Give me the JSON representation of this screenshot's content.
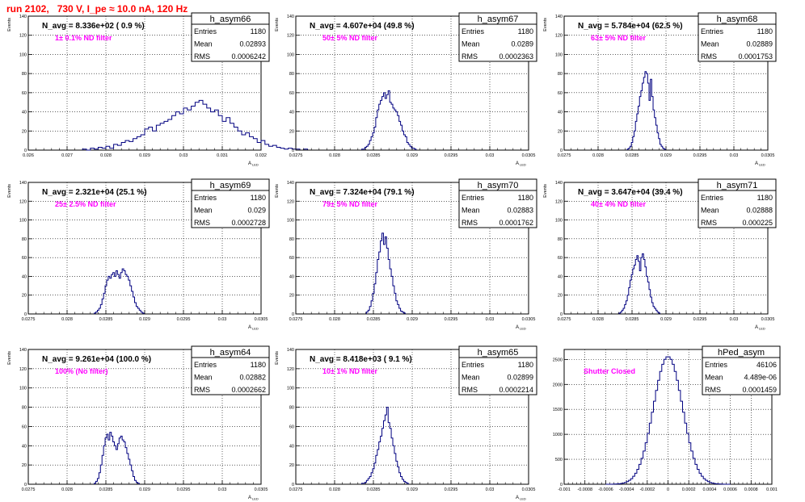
{
  "header": {
    "run_title": "run 2102,   730 V, I_pe ≈ 10.0 nA, 120 Hz"
  },
  "colors": {
    "title": "#ff0000",
    "histogram": "#000080",
    "filter_label": "#ff00ff",
    "grid": "#000000"
  },
  "stats_labels": {
    "entries": "Entries",
    "mean": "Mean",
    "rms": "RMS"
  },
  "chart_data": [
    {
      "type": "histogram",
      "name": "h_asym66",
      "title": "N_avg = 8.336e+02 ( 0.9 %)",
      "filter_label": "1± 0.1% ND filter",
      "ylabel": "Events",
      "xlabel": "A_LED",
      "xlim": [
        0.026,
        0.032
      ],
      "ylim": [
        0,
        140
      ],
      "xticks": [
        0.026,
        0.027,
        0.028,
        0.029,
        0.03,
        0.031,
        0.032
      ],
      "xtick_labels": [
        "0.026",
        "0.027",
        "0.028",
        "0.029",
        "0.03",
        "0.031",
        "0.032"
      ],
      "yticks": [
        0,
        20,
        40,
        60,
        80,
        100,
        120,
        140
      ],
      "ytick_labels": [
        "0",
        "20",
        "40",
        "60",
        "80",
        "100",
        "120",
        "140"
      ],
      "stats": {
        "entries": "1180",
        "mean": "0.02893",
        "rms": "0.0006242"
      },
      "bin_start": 0.0274,
      "bin_width": 0.0001,
      "counts": [
        1,
        0,
        2,
        1,
        3,
        2,
        4,
        2,
        6,
        5,
        8,
        10,
        9,
        12,
        14,
        16,
        22,
        24,
        20,
        26,
        28,
        30,
        32,
        36,
        40,
        38,
        44,
        42,
        46,
        50,
        52,
        48,
        44,
        40,
        42,
        36,
        30,
        34,
        28,
        24,
        20,
        16,
        18,
        14,
        12,
        8,
        10,
        6,
        4,
        5,
        3,
        2,
        1,
        2,
        1,
        1,
        0,
        1
      ]
    },
    {
      "type": "histogram",
      "name": "h_asym67",
      "title": "N_avg = 4.607e+04 (49.8 %)",
      "filter_label": "50± 5% ND filter",
      "ylabel": "Events",
      "xlabel": "A_LED",
      "xlim": [
        0.0275,
        0.0305
      ],
      "ylim": [
        0,
        140
      ],
      "xticks": [
        0.0275,
        0.028,
        0.0285,
        0.029,
        0.0295,
        0.03,
        0.0305
      ],
      "xtick_labels": [
        "0.0275",
        "0.028",
        "0.0285",
        "0.029",
        "0.0295",
        "0.03",
        "0.0305"
      ],
      "yticks": [
        0,
        20,
        40,
        60,
        80,
        100,
        120,
        140
      ],
      "ytick_labels": [
        "0",
        "20",
        "40",
        "60",
        "80",
        "100",
        "120",
        "140"
      ],
      "stats": {
        "entries": "1180",
        "mean": "0.0289",
        "rms": "0.0002363"
      },
      "bin_start": 0.02835,
      "bin_width": 2e-05,
      "counts": [
        1,
        1,
        3,
        4,
        6,
        10,
        14,
        18,
        24,
        34,
        42,
        48,
        52,
        56,
        60,
        54,
        58,
        62,
        50,
        48,
        44,
        42,
        40,
        36,
        30,
        26,
        20,
        16,
        14,
        8,
        6,
        4,
        2,
        2,
        1
      ]
    },
    {
      "type": "histogram",
      "name": "h_asym68",
      "title": "N_avg = 5.784e+04 (62.5 %)",
      "filter_label": "63± 5% ND filter",
      "ylabel": "Events",
      "xlabel": "A_LED",
      "xlim": [
        0.0275,
        0.0305
      ],
      "ylim": [
        0,
        140
      ],
      "xticks": [
        0.0275,
        0.028,
        0.0285,
        0.029,
        0.0295,
        0.03,
        0.0305
      ],
      "xtick_labels": [
        "0.0275",
        "0.028",
        "0.0285",
        "0.029",
        "0.0295",
        "0.03",
        "0.0305"
      ],
      "yticks": [
        0,
        20,
        40,
        60,
        80,
        100,
        120,
        140
      ],
      "ytick_labels": [
        "0",
        "20",
        "40",
        "60",
        "80",
        "100",
        "120",
        "140"
      ],
      "stats": {
        "entries": "1180",
        "mean": "0.02889",
        "rms": "0.0001753"
      },
      "bin_start": 0.02843,
      "bin_width": 2e-05,
      "counts": [
        1,
        2,
        4,
        8,
        14,
        20,
        30,
        38,
        46,
        56,
        62,
        70,
        76,
        82,
        80,
        70,
        52,
        74,
        56,
        42,
        34,
        26,
        18,
        12,
        6,
        4,
        2,
        1
      ]
    },
    {
      "type": "histogram",
      "name": "h_asym69",
      "title": "N_avg = 2.321e+04 (25.1 %)",
      "filter_label": "25± 2.5% ND filter",
      "ylabel": "Events",
      "xlabel": "A_LED",
      "xlim": [
        0.0275,
        0.0305
      ],
      "ylim": [
        0,
        140
      ],
      "xticks": [
        0.0275,
        0.028,
        0.0285,
        0.029,
        0.0295,
        0.03,
        0.0305
      ],
      "xtick_labels": [
        "0.0275",
        "0.028",
        "0.0285",
        "0.029",
        "0.0295",
        "0.03",
        "0.0305"
      ],
      "yticks": [
        0,
        20,
        40,
        60,
        80,
        100,
        120,
        140
      ],
      "ytick_labels": [
        "0",
        "20",
        "40",
        "60",
        "80",
        "100",
        "120",
        "140"
      ],
      "stats": {
        "entries": "1180",
        "mean": "0.029",
        "rms": "0.0002728"
      },
      "bin_start": 0.02835,
      "bin_width": 2e-05,
      "counts": [
        1,
        2,
        4,
        6,
        10,
        16,
        22,
        30,
        36,
        40,
        38,
        42,
        44,
        40,
        46,
        42,
        38,
        44,
        48,
        46,
        42,
        40,
        36,
        30,
        24,
        18,
        12,
        8,
        6,
        4,
        2,
        1
      ]
    },
    {
      "type": "histogram",
      "name": "h_asym70",
      "title": "N_avg = 7.324e+04 (79.1 %)",
      "filter_label": "79± 5% ND filter",
      "ylabel": "Events",
      "xlabel": "A_LED",
      "xlim": [
        0.0275,
        0.0305
      ],
      "ylim": [
        0,
        140
      ],
      "xticks": [
        0.0275,
        0.028,
        0.0285,
        0.029,
        0.0295,
        0.03,
        0.0305
      ],
      "xtick_labels": [
        "0.0275",
        "0.028",
        "0.0285",
        "0.029",
        "0.0295",
        "0.03",
        "0.0305"
      ],
      "yticks": [
        0,
        20,
        40,
        60,
        80,
        100,
        120,
        140
      ],
      "ytick_labels": [
        "0",
        "20",
        "40",
        "60",
        "80",
        "100",
        "120",
        "140"
      ],
      "stats": {
        "entries": "1180",
        "mean": "0.02883",
        "rms": "0.0001762"
      },
      "bin_start": 0.02841,
      "bin_width": 2e-05,
      "counts": [
        2,
        4,
        8,
        14,
        22,
        32,
        44,
        58,
        66,
        78,
        86,
        74,
        82,
        70,
        58,
        48,
        40,
        30,
        22,
        14,
        10,
        6,
        3,
        2,
        1
      ]
    },
    {
      "type": "histogram",
      "name": "h_asym71",
      "title": "N_avg = 3.647e+04 (39.4 %)",
      "filter_label": "40± 4% ND filter",
      "ylabel": "Events",
      "xlabel": "A_LED",
      "xlim": [
        0.0275,
        0.0305
      ],
      "ylim": [
        0,
        140
      ],
      "xticks": [
        0.0275,
        0.028,
        0.0285,
        0.029,
        0.0295,
        0.03,
        0.0305
      ],
      "xtick_labels": [
        "0.0275",
        "0.028",
        "0.0285",
        "0.029",
        "0.0295",
        "0.03",
        "0.0305"
      ],
      "yticks": [
        0,
        20,
        40,
        60,
        80,
        100,
        120,
        140
      ],
      "ytick_labels": [
        "0",
        "20",
        "40",
        "60",
        "80",
        "100",
        "120",
        "140"
      ],
      "stats": {
        "entries": "1180",
        "mean": "0.02888",
        "rms": "0.000225"
      },
      "bin_start": 0.02831,
      "bin_width": 2e-05,
      "counts": [
        1,
        2,
        4,
        6,
        10,
        14,
        20,
        28,
        36,
        42,
        48,
        52,
        58,
        62,
        56,
        46,
        60,
        64,
        58,
        50,
        40,
        34,
        26,
        18,
        12,
        8,
        6,
        4,
        2,
        1
      ]
    },
    {
      "type": "histogram",
      "name": "h_asym64",
      "title": "N_avg = 9.261e+04 (100.0 %)",
      "filter_label": "100% (No filter)",
      "ylabel": "Events",
      "xlabel": "A_LED",
      "xlim": [
        0.0275,
        0.0305
      ],
      "ylim": [
        0,
        140
      ],
      "xticks": [
        0.0275,
        0.028,
        0.0285,
        0.029,
        0.0295,
        0.03,
        0.0305
      ],
      "xtick_labels": [
        "0.0275",
        "0.028",
        "0.0285",
        "0.029",
        "0.0295",
        "0.03",
        "0.0305"
      ],
      "yticks": [
        0,
        20,
        40,
        60,
        80,
        100,
        120,
        140
      ],
      "ytick_labels": [
        "0",
        "20",
        "40",
        "60",
        "80",
        "100",
        "120",
        "140"
      ],
      "stats": {
        "entries": "1180",
        "mean": "0.02882",
        "rms": "0.0002662"
      },
      "bin_start": 0.02835,
      "bin_width": 2e-05,
      "counts": [
        1,
        3,
        6,
        12,
        20,
        30,
        40,
        48,
        52,
        46,
        54,
        50,
        44,
        40,
        36,
        42,
        48,
        50,
        46,
        44,
        38,
        32,
        26,
        20,
        14,
        8,
        4,
        2,
        1
      ]
    },
    {
      "type": "histogram",
      "name": "h_asym65",
      "title": "N_avg = 8.418e+03 ( 9.1 %)",
      "filter_label": "10± 1% ND filter",
      "ylabel": "Events",
      "xlabel": "A_LED",
      "xlim": [
        0.0275,
        0.0305
      ],
      "ylim": [
        0,
        140
      ],
      "xticks": [
        0.0275,
        0.028,
        0.0285,
        0.029,
        0.0295,
        0.03,
        0.0305
      ],
      "xtick_labels": [
        "0.0275",
        "0.028",
        "0.0285",
        "0.029",
        "0.0295",
        "0.03",
        "0.0305"
      ],
      "yticks": [
        0,
        20,
        40,
        60,
        80,
        100,
        120,
        140
      ],
      "ytick_labels": [
        "0",
        "20",
        "40",
        "60",
        "80",
        "100",
        "120",
        "140"
      ],
      "stats": {
        "entries": "1180",
        "mean": "0.02899",
        "rms": "0.0002214"
      },
      "bin_start": 0.02835,
      "bin_width": 2e-05,
      "counts": [
        1,
        1,
        2,
        4,
        6,
        8,
        12,
        16,
        22,
        30,
        36,
        44,
        50,
        58,
        66,
        72,
        80,
        64,
        58,
        48,
        40,
        32,
        24,
        18,
        12,
        8,
        5,
        3,
        2,
        1
      ]
    },
    {
      "type": "histogram",
      "name": "hPed_asym",
      "title": "",
      "filter_label": "Shutter Closed",
      "ylabel": "",
      "xlabel": "",
      "xlim": [
        -0.001,
        0.001
      ],
      "ylim": [
        0,
        2700
      ],
      "xticks": [
        -0.001,
        -0.0008,
        -0.0006,
        -0.0004,
        -0.0002,
        0,
        0.0002,
        0.0004,
        0.0006,
        0.0008,
        0.001
      ],
      "xtick_labels": [
        "-0.001",
        "-0.0008",
        "-0.0006",
        "-0.0004",
        "-0.0002",
        "0",
        "0.0002",
        "0.0004",
        "0.0006",
        "0.0008",
        "0.001"
      ],
      "yticks": [
        0,
        500,
        1000,
        1500,
        2000,
        2500
      ],
      "ytick_labels": [
        "0",
        "500",
        "1000",
        "1500",
        "2000",
        "2500"
      ],
      "stats": {
        "entries": "46106",
        "mean": "4.489e-06",
        "rms": "0.0001459"
      },
      "gaussian": {
        "mean": 0.0,
        "sigma": 0.00014,
        "peak": 2560
      },
      "bin_start": -0.0006,
      "bin_width": 2e-05,
      "nbins": 60
    }
  ]
}
